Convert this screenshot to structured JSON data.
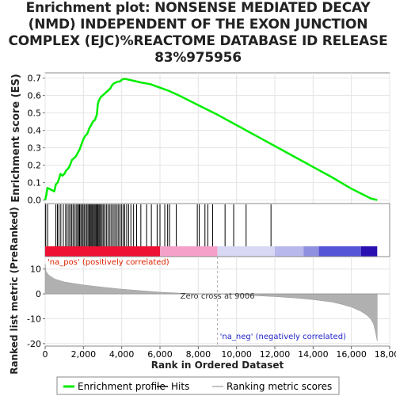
{
  "title_lines": [
    "Enrichment plot: NONSENSE MEDIATED DECAY",
    "(NMD) INDEPENDENT OF THE EXON JUNCTION",
    "COMPLEX (EJC)%REACTOME DATABASE ID RELEASE",
    "83%975956"
  ],
  "chart_data": {
    "type": "line",
    "top_panel": {
      "ylabel": "Enrichment score (ES)",
      "ylim": [
        -0.02,
        0.73
      ],
      "yticks": [
        0.0,
        0.1,
        0.2,
        0.3,
        0.4,
        0.5,
        0.6,
        0.7
      ],
      "ytick_labels": [
        "0.0",
        "0.1",
        "0.2",
        "0.3",
        "0.4",
        "0.5",
        "0.6",
        "0.7"
      ],
      "grid": true,
      "series": [
        {
          "name": "Enrichment profile",
          "color": "#00ee00",
          "x": [
            0,
            60,
            120,
            300,
            480,
            560,
            650,
            720,
            800,
            900,
            1000,
            1100,
            1200,
            1300,
            1400,
            1500,
            1600,
            1700,
            1800,
            1900,
            2000,
            2100,
            2200,
            2300,
            2400,
            2500,
            2600,
            2700,
            2750,
            2800,
            2900,
            3000,
            3100,
            3200,
            3300,
            3400,
            3500,
            3600,
            3700,
            3800,
            3900,
            4000,
            4100,
            4200,
            4400,
            4600,
            5000,
            5500,
            6000,
            6500,
            7000,
            8000,
            9000,
            10000,
            11000,
            12000,
            13000,
            14000,
            15000,
            16000,
            17000,
            17350
          ],
          "y": [
            0.0,
            0.03,
            0.07,
            0.06,
            0.05,
            0.09,
            0.1,
            0.12,
            0.15,
            0.14,
            0.15,
            0.17,
            0.18,
            0.2,
            0.23,
            0.24,
            0.25,
            0.27,
            0.29,
            0.32,
            0.35,
            0.37,
            0.38,
            0.41,
            0.43,
            0.45,
            0.46,
            0.49,
            0.55,
            0.57,
            0.59,
            0.6,
            0.61,
            0.62,
            0.63,
            0.64,
            0.66,
            0.67,
            0.675,
            0.68,
            0.68,
            0.69,
            0.695,
            0.695,
            0.69,
            0.685,
            0.675,
            0.665,
            0.645,
            0.625,
            0.6,
            0.545,
            0.49,
            0.43,
            0.37,
            0.31,
            0.25,
            0.19,
            0.13,
            0.065,
            0.01,
            0.0
          ]
        }
      ]
    },
    "hits_panel": {
      "hit_positions": [
        30,
        130,
        560,
        640,
        720,
        820,
        950,
        1070,
        1150,
        1240,
        1310,
        1390,
        1460,
        1540,
        1620,
        1690,
        1750,
        1800,
        1860,
        1920,
        1980,
        2040,
        2110,
        2180,
        2240,
        2300,
        2350,
        2400,
        2450,
        2500,
        2560,
        2610,
        2660,
        2710,
        2760,
        2810,
        2860,
        2920,
        2980,
        3050,
        3120,
        3200,
        3280,
        3360,
        3440,
        3520,
        3600,
        3680,
        3760,
        3840,
        3920,
        4000,
        4080,
        4160,
        4260,
        4360,
        4480,
        4620,
        4780,
        5000,
        5300,
        5550,
        5850,
        6000,
        6250,
        6400,
        6500,
        6850,
        7950,
        8050,
        8350,
        8500,
        8750,
        9400,
        9850,
        10500,
        11800
      ],
      "color_bands": [
        {
          "from": 0,
          "to": 6000,
          "color": "#ee1133"
        },
        {
          "from": 6000,
          "to": 9006,
          "color": "#f4a0c8"
        },
        {
          "from": 9006,
          "to": 12000,
          "color": "#d8d8f4"
        },
        {
          "from": 12000,
          "to": 13500,
          "color": "#b8b8ec"
        },
        {
          "from": 13500,
          "to": 14300,
          "color": "#9090e0"
        },
        {
          "from": 14300,
          "to": 16500,
          "color": "#5555d8"
        },
        {
          "from": 16500,
          "to": 17350,
          "color": "#2a10b0"
        }
      ]
    },
    "metric_panel": {
      "ylabel": "Ranked list metric (PreRanked)",
      "ylim": [
        -21,
        15
      ],
      "yticks": [
        10,
        0,
        -10,
        -20
      ],
      "ytick_labels": [
        "10",
        "0",
        "-10",
        "-20"
      ],
      "zero_cross": 9006,
      "zero_cross_label": "Zero cross at 9006",
      "pos_label": "'na_pos' (positively correlated)",
      "neg_label": "'na_neg' (negatively correlated)",
      "pos_color": "#dd2200",
      "neg_color": "#2222cc",
      "fill_color": "#b0b0b0",
      "x": [
        0,
        50,
        200,
        500,
        1000,
        2000,
        3000,
        4000,
        5000,
        6000,
        7000,
        8000,
        9006,
        10000,
        11000,
        12000,
        13000,
        14000,
        15000,
        15500,
        16000,
        16500,
        16800,
        17000,
        17150,
        17250,
        17350
      ],
      "y": [
        12,
        9,
        7.5,
        6,
        4.8,
        3.6,
        2.7,
        1.9,
        1.3,
        0.7,
        0.3,
        0.1,
        0,
        -0.3,
        -0.7,
        -1.1,
        -1.6,
        -2.3,
        -3.3,
        -4.2,
        -5.3,
        -7,
        -8.5,
        -10,
        -12,
        -15,
        -19
      ]
    },
    "x_axis": {
      "xlabel": "Rank in Ordered Dataset",
      "xlim": [
        0,
        18000
      ],
      "xticks": [
        0,
        2000,
        4000,
        6000,
        8000,
        10000,
        12000,
        14000,
        16000,
        18000
      ],
      "xtick_labels": [
        "0",
        "2,000",
        "4,000",
        "6,000",
        "8,000",
        "10,000",
        "12,000",
        "14,000",
        "16,000",
        "18,000"
      ]
    },
    "legend": [
      {
        "label": "Enrichment profile",
        "color": "#00ee00",
        "icon": "line-icon"
      },
      {
        "label": "Hits",
        "color": "#000000",
        "icon": "line-icon"
      },
      {
        "label": "Ranking metric scores",
        "color": "#b0b0b0",
        "icon": "line-icon"
      }
    ]
  }
}
